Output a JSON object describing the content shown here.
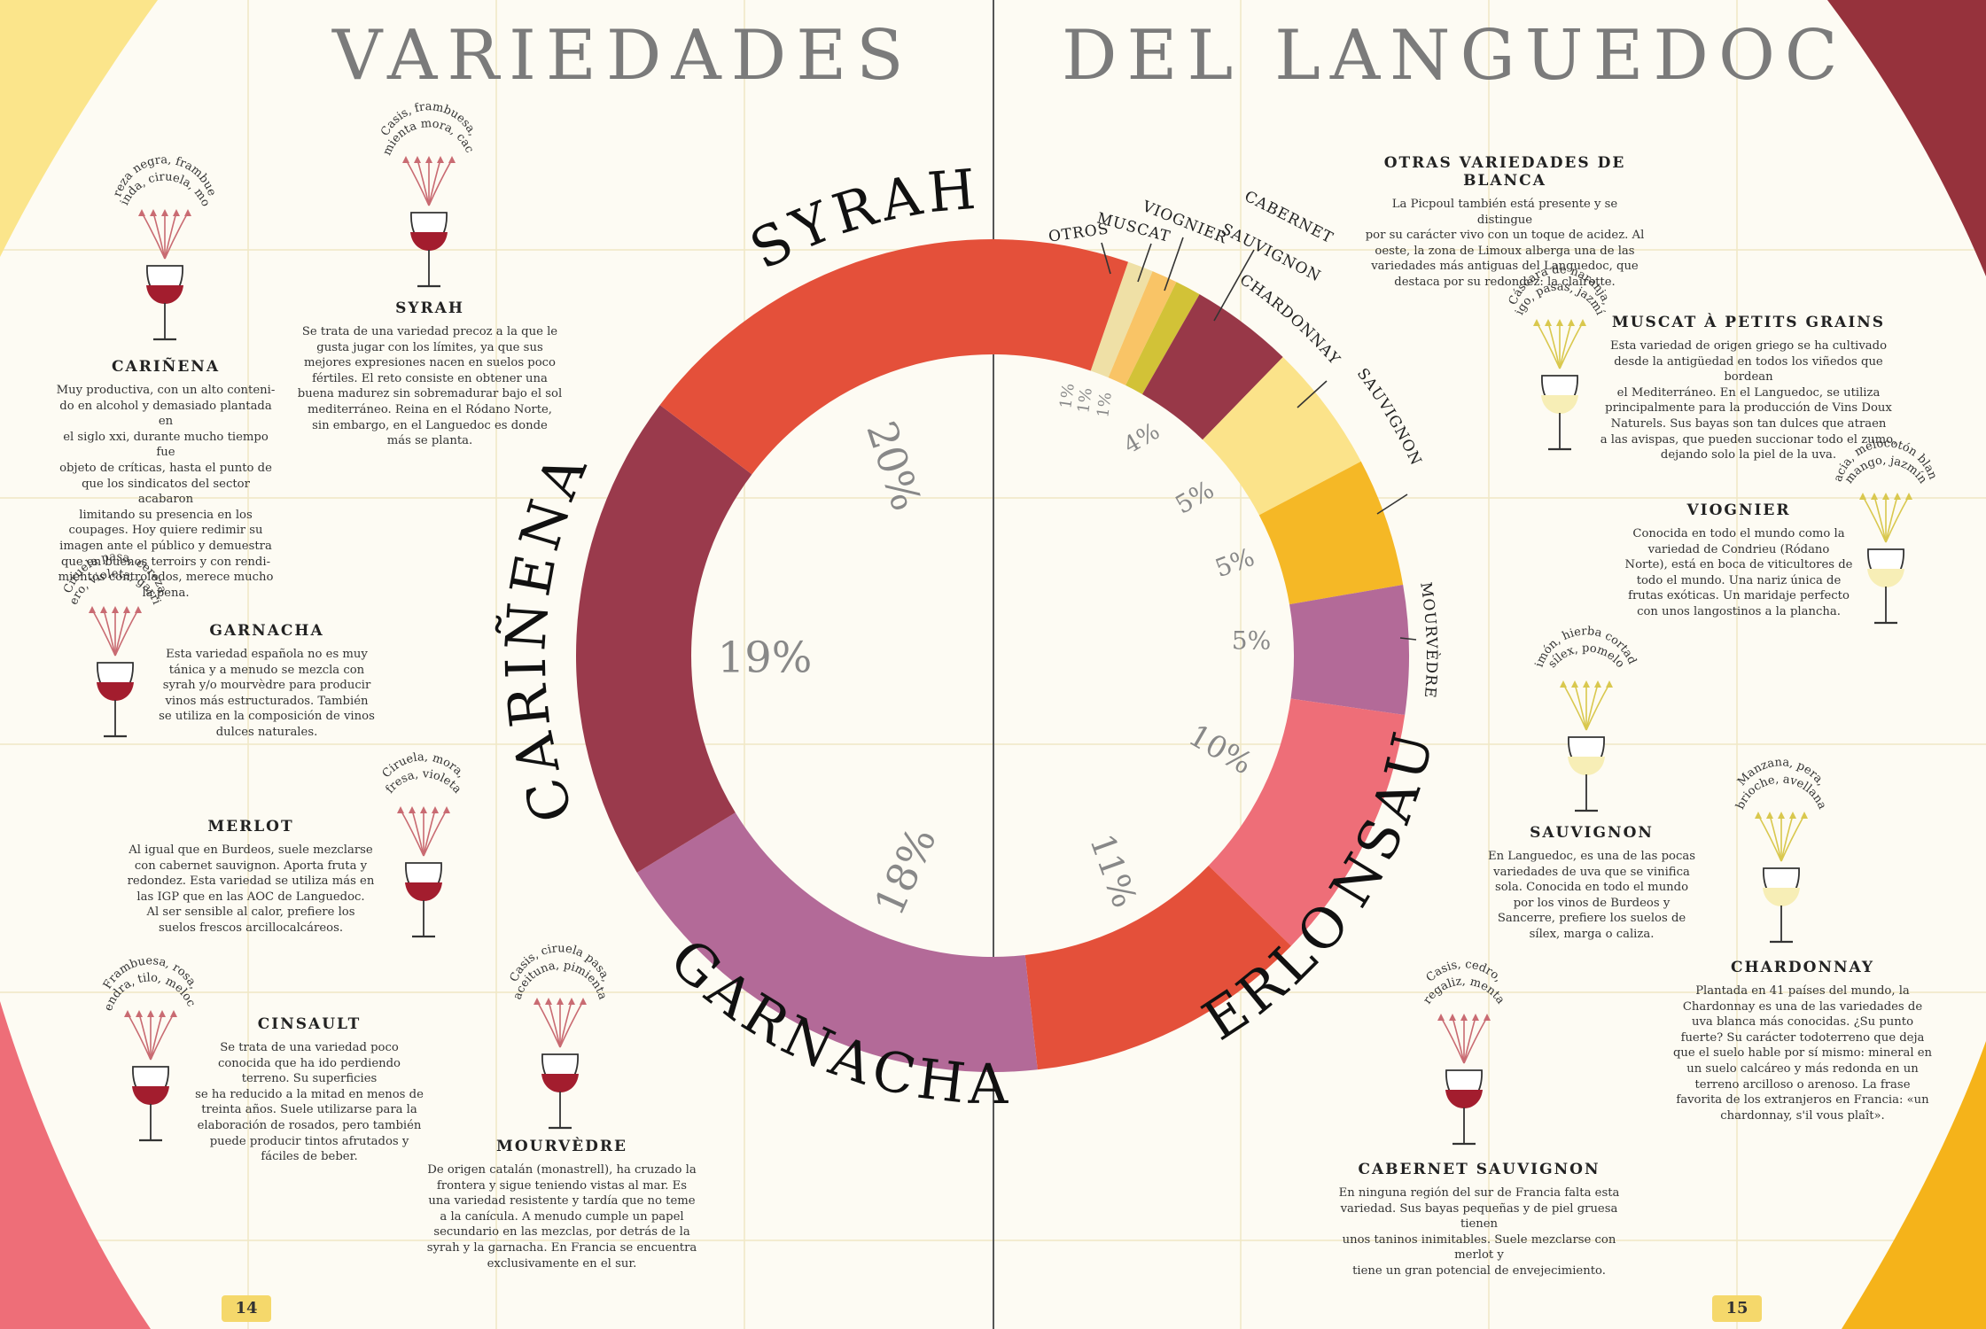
{
  "header": {
    "title_left": "VARIEDADES",
    "title_right": "DEL LANGUEDOC"
  },
  "page_numbers": {
    "left": "14",
    "right": "15"
  },
  "colors": {
    "background": "#fdfbf3",
    "corner_yellow": "#fbe58b",
    "corner_pink": "#ee6e78",
    "corner_wine": "#96323c",
    "corner_orange": "#f5b31a",
    "red_wine": "#a31d2e",
    "white_wine": "#f7eeb6"
  },
  "chart_data": {
    "type": "pie",
    "donut": true,
    "title": "",
    "series": [
      {
        "name": "SYRAH",
        "value": 20,
        "label": "20%",
        "color": "#e4503a"
      },
      {
        "name": "CARIÑENA",
        "value": 19,
        "label": "19%",
        "color": "#9a3a4c"
      },
      {
        "name": "GARNACHA",
        "value": 18,
        "label": "18%",
        "color": "#b36a98"
      },
      {
        "name": "MERLOT",
        "value": 11,
        "label": "11%",
        "color": "#e4503a"
      },
      {
        "name": "CINSAULT",
        "value": 10,
        "label": "10%",
        "color": "#ee6e78"
      },
      {
        "name": "MOURVÈDRE",
        "value": 5,
        "label": "5%",
        "color": "#b36a98"
      },
      {
        "name": "SAUVIGNON",
        "value": 5,
        "label": "5%",
        "color": "#f5b826"
      },
      {
        "name": "CHARDONNAY",
        "value": 5,
        "label": "5%",
        "color": "#fbe38a"
      },
      {
        "name": "CABERNET SAUVIGNON",
        "value": 4,
        "label": "4%",
        "color": "#983848"
      },
      {
        "name": "VIOGNIER",
        "value": 1,
        "label": "1%",
        "color": "#d2c237"
      },
      {
        "name": "MUSCAT",
        "value": 1,
        "label": "1%",
        "color": "#f9c466"
      },
      {
        "name": "OTROS",
        "value": 1,
        "label": "1%",
        "color": "#efe0a6"
      }
    ]
  },
  "varieties": {
    "carinena": {
      "name": "CARIÑENA",
      "aroma": [
        "Cereza negra, frambuesa,",
        "guinda, ciruela, moca"
      ],
      "text": [
        "Muy productiva, con un alto conteni-",
        "do en alcohol y demasiado plantada en",
        "el siglo xxi, durante mucho tiempo fue",
        "objeto de críticas, hasta el punto de",
        "que los sindicatos del sector acabaron",
        "limitando su presencia en los",
        "coupages. Hoy quiere redimir su",
        "imagen ante el público y demuestra",
        "que en buenos terroirs y con rendi-",
        "mientos controlados, merece mucho",
        "la pena."
      ]
    },
    "syrah": {
      "name": "SYRAH",
      "aroma": [
        "Casis, frambuesa,",
        "pimienta mora, cacao"
      ],
      "text": [
        "Se trata de una variedad precoz a la que le",
        "gusta jugar con los límites, ya que sus",
        "mejores expresiones nacen en suelos poco",
        "fértiles. El reto consiste en obtener una",
        "buena madurez sin sobremadurar bajo el sol",
        "mediterráneo. Reina en el Ródano Norte,",
        "sin embargo, en el Languedoc es donde",
        "más se planta."
      ]
    },
    "garnacha": {
      "name": "GARNACHA",
      "aroma": [
        "Ciruela pasa, cereza",
        "cuero, violeta, garriga"
      ],
      "text": [
        "Esta variedad española no es muy",
        "tánica y a menudo se mezcla con",
        "syrah y/o mourvèdre para producir",
        "vinos más estructurados. También",
        "se utiliza en la composición de vinos",
        "dulces naturales."
      ]
    },
    "merlot": {
      "name": "MERLOT",
      "aroma": [
        "Ciruela, mora,",
        "fresa, violeta"
      ],
      "text": [
        "Al igual que en Burdeos, suele mezclarse",
        "con cabernet sauvignon. Aporta fruta y",
        "redondez. Esta variedad se utiliza más en",
        "las IGP que en las AOC de Languedoc.",
        "Al ser sensible al calor, prefiere los",
        "suelos frescos arcillocalcáreos."
      ]
    },
    "cinsault": {
      "name": "CINSAULT",
      "aroma": [
        "Frambuesa, rosa,",
        "almendra, tilo, melocotón"
      ],
      "text": [
        "Se trata de una variedad poco",
        "conocida que ha ido perdiendo",
        "terreno. Su superficies",
        "se ha reducido a la mitad en menos de",
        "treinta años. Suele utilizarse para la",
        "elaboración de rosados, pero también",
        "puede producir tintos afrutados y",
        "fáciles de beber."
      ]
    },
    "mourvedre": {
      "name": "MOURVÈDRE",
      "aroma": [
        "Casis, ciruela pasa,",
        "aceituna, pimienta"
      ],
      "text": [
        "De origen catalán (monastrell), ha cruzado la",
        "frontera y sigue teniendo vistas al mar. Es",
        "una variedad resistente y tardía que no teme",
        "a la canícula. A menudo cumple un papel",
        "secundario en las mezclas, por detrás de la",
        "syrah y la garnacha. En Francia se encuentra",
        "exclusivamente en el sur."
      ]
    },
    "otras": {
      "name": "OTRAS VARIEDADES DE BLANCA",
      "text": [
        "La Picpoul también está presente y se distingue",
        "por su carácter vivo con un toque de acidez. Al",
        "oeste, la zona de Limoux alberga una de las",
        "variedades más antiguas del Languedoc, que",
        "destaca por su redondez: la clairette."
      ]
    },
    "muscat": {
      "name": "MUSCAT À PETITS GRAINS",
      "aroma": [
        "Cáscara de naranja,",
        "higo, pasas, jazmín"
      ],
      "text": [
        "Esta variedad de origen griego se ha cultivado",
        "desde la antigüedad en todos los viñedos que bordean",
        "el Mediterráneo. En el Languedoc, se utiliza",
        "principalmente para la producción de Vins Doux",
        "Naturels. Sus bayas son tan dulces que atraen",
        "a las avispas, que pueden succionar todo el zumo,",
        "dejando solo la piel de la uva."
      ]
    },
    "viognier": {
      "name": "VIOGNIER",
      "aroma": [
        "Acacia, melocotón blanco,",
        "mango, jazmín"
      ],
      "text": [
        "Conocida en todo el mundo como la",
        "variedad de Condrieu (Ródano",
        "Norte), está en boca de viticultores de",
        "todo el mundo. Una nariz única de",
        "frutas exóticas. Un maridaje perfecto",
        "con unos langostinos a la plancha."
      ]
    },
    "sauvignon": {
      "name": "SAUVIGNON",
      "aroma": [
        "Limón, hierba cortada,",
        "sílex, pomelo"
      ],
      "text": [
        "En Languedoc, es una de las pocas",
        "variedades de uva que se vinifica",
        "sola. Conocida en todo el mundo",
        "por los vinos de Burdeos y",
        "Sancerre, prefiere los suelos de",
        "sílex, marga o caliza."
      ]
    },
    "chardonnay": {
      "name": "CHARDONNAY",
      "aroma": [
        "Manzana, pera,",
        "brioche, avellana"
      ],
      "text": [
        "Plantada en 41 países del mundo, la",
        "Chardonnay es una de las variedades de",
        "uva blanca más conocidas. ¿Su punto",
        "fuerte? Su carácter todoterreno que deja",
        "que el suelo hable por sí mismo: mineral en",
        "un suelo calcáreo y más redonda en un",
        "terreno arcilloso o arenoso. La frase",
        "favorita de los extranjeros en Francia: «un",
        "chardonnay, s'il vous plaît»."
      ]
    },
    "cabernet": {
      "name": "CABERNET SAUVIGNON",
      "aroma": [
        "Casis, cedro,",
        "regaliz, menta"
      ],
      "text": [
        "En ninguna región del sur de Francia falta esta",
        "variedad. Sus bayas pequeñas y de piel gruesa tienen",
        "unos taninos inimitables. Suele mezclarse con merlot y",
        "tiene un gran potencial de envejecimiento."
      ]
    }
  }
}
